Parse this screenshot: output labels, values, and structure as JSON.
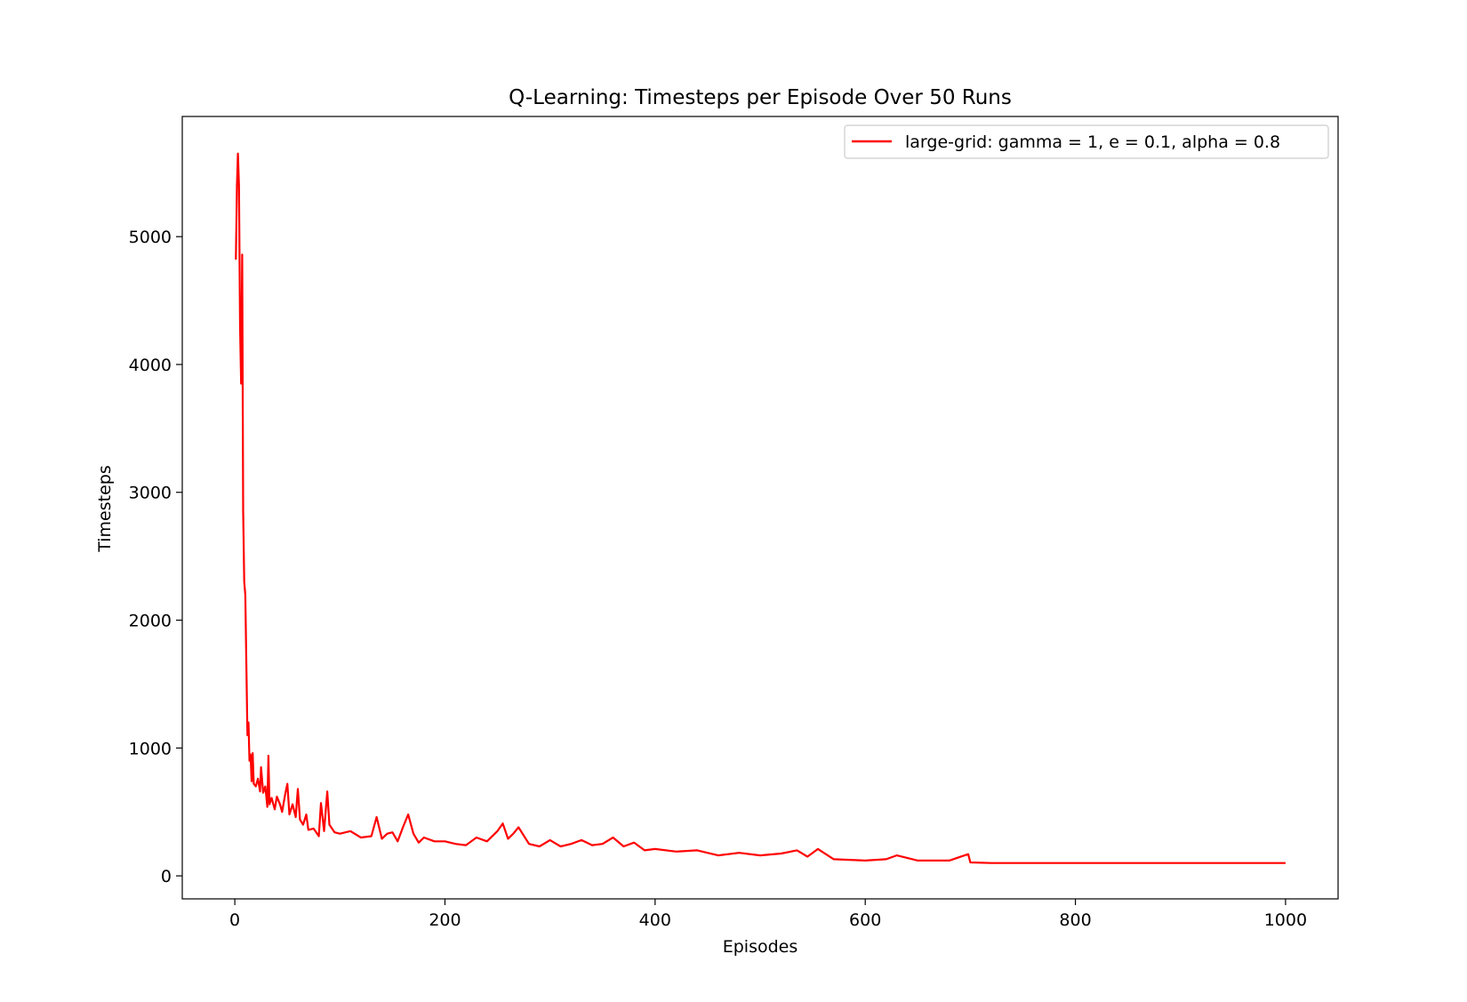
{
  "chart_data": {
    "type": "line",
    "title": "Q-Learning: Timesteps per Episode Over 50 Runs",
    "xlabel": "Episodes",
    "ylabel": "Timesteps",
    "xlim": [
      -50,
      1050
    ],
    "ylim": [
      -180,
      5940
    ],
    "xticks": [
      0,
      200,
      400,
      600,
      800,
      1000
    ],
    "yticks": [
      0,
      1000,
      2000,
      3000,
      4000,
      5000
    ],
    "grid": false,
    "legend_position": "top-right",
    "series": [
      {
        "name": "large-grid: gamma = 1, e = 0.1, alpha = 0.8",
        "color": "#ff0000",
        "x": [
          1,
          2,
          3,
          4,
          5,
          6,
          7,
          8,
          9,
          10,
          11,
          12,
          13,
          14,
          15,
          16,
          17,
          18,
          20,
          22,
          24,
          25,
          27,
          29,
          31,
          32,
          33,
          35,
          38,
          40,
          43,
          45,
          48,
          50,
          52,
          55,
          58,
          60,
          62,
          65,
          68,
          70,
          75,
          80,
          82,
          85,
          88,
          90,
          95,
          100,
          110,
          120,
          130,
          135,
          140,
          145,
          150,
          155,
          160,
          165,
          170,
          175,
          180,
          190,
          200,
          210,
          220,
          230,
          240,
          250,
          255,
          260,
          265,
          270,
          280,
          290,
          300,
          310,
          320,
          330,
          340,
          350,
          360,
          370,
          380,
          390,
          400,
          420,
          440,
          460,
          480,
          500,
          520,
          535,
          545,
          555,
          570,
          600,
          620,
          630,
          650,
          680,
          698,
          700,
          720,
          750,
          800,
          850,
          900,
          950,
          1000
        ],
        "y": [
          4820,
          5400,
          5650,
          5400,
          4300,
          3850,
          4860,
          2850,
          2300,
          2200,
          1650,
          1100,
          1200,
          900,
          950,
          740,
          960,
          720,
          700,
          760,
          660,
          850,
          650,
          700,
          540,
          940,
          560,
          610,
          520,
          620,
          560,
          500,
          640,
          720,
          480,
          560,
          460,
          680,
          440,
          400,
          480,
          360,
          370,
          310,
          570,
          350,
          660,
          400,
          340,
          330,
          350,
          300,
          310,
          460,
          290,
          330,
          340,
          270,
          380,
          480,
          330,
          260,
          300,
          270,
          270,
          250,
          240,
          300,
          270,
          350,
          410,
          290,
          330,
          380,
          250,
          230,
          280,
          230,
          250,
          280,
          240,
          250,
          300,
          230,
          260,
          200,
          210,
          190,
          200,
          160,
          180,
          160,
          175,
          200,
          150,
          210,
          130,
          120,
          130,
          160,
          120,
          120,
          170,
          105,
          100,
          100,
          100,
          100,
          100,
          100,
          100
        ]
      }
    ]
  }
}
